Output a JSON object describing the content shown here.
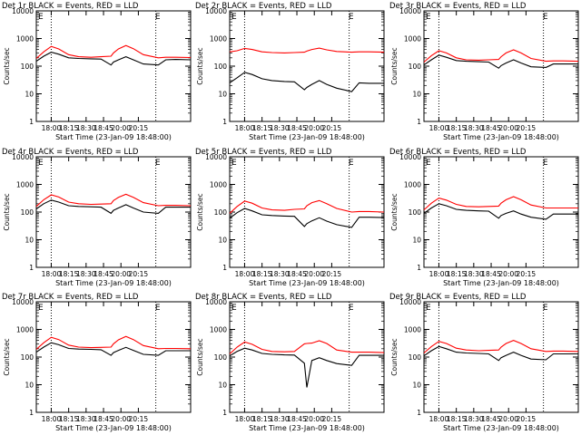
{
  "colors": {
    "events": "#000000",
    "lld": "#ff0000",
    "marker": "#000000"
  },
  "figure": {
    "ylabel": "Counts/sec",
    "xlabel": "Start Time (23-Jan-09 18:48:00)",
    "xtick_labels": [
      "18:00",
      "18:15",
      "18:30",
      "18:45",
      "20:00",
      "20:15"
    ],
    "ytick_labels": [
      "1",
      "10",
      "100",
      "1000",
      "10000"
    ],
    "ytick_values": [
      1,
      10,
      100,
      1000,
      10000
    ],
    "corner_mark": "E"
  },
  "chart_data": [
    {
      "type": "line",
      "title": "Det 1r BLACK = Events, RED = LLD",
      "x_minutes": [
        0,
        6,
        12,
        18,
        26,
        34,
        44,
        52,
        60,
        62,
        66,
        72,
        78,
        86,
        98,
        104,
        112,
        124
      ],
      "ylim": [
        1,
        10000
      ],
      "log_y": true,
      "vlines_minutes": [
        12,
        96
      ],
      "series": [
        {
          "name": "Events",
          "values": [
            150,
            230,
            320,
            270,
            200,
            190,
            185,
            180,
            110,
            140,
            170,
            220,
            170,
            120,
            110,
            170,
            175,
            170
          ]
        },
        {
          "name": "LLD",
          "values": [
            190,
            330,
            520,
            420,
            260,
            220,
            210,
            220,
            230,
            300,
            420,
            560,
            430,
            260,
            200,
            210,
            210,
            205
          ]
        }
      ]
    },
    {
      "type": "line",
      "title": "Det 2r BLACK = Events, RED = LLD",
      "x_minutes": [
        0,
        6,
        12,
        18,
        26,
        34,
        44,
        52,
        60,
        62,
        66,
        72,
        78,
        86,
        98,
        104,
        112,
        124
      ],
      "ylim": [
        1,
        10000
      ],
      "log_y": true,
      "vlines_minutes": [
        12,
        96
      ],
      "series": [
        {
          "name": "Events",
          "values": [
            25,
            38,
            60,
            50,
            35,
            30,
            28,
            27,
            14,
            17,
            22,
            30,
            22,
            16,
            12,
            25,
            24,
            24
          ]
        },
        {
          "name": "LLD",
          "values": [
            330,
            360,
            440,
            400,
            330,
            310,
            300,
            310,
            320,
            350,
            400,
            450,
            390,
            340,
            320,
            330,
            330,
            320
          ]
        }
      ]
    },
    {
      "type": "line",
      "title": "Det 3r BLACK = Events, RED = LLD",
      "x_minutes": [
        0,
        6,
        12,
        18,
        26,
        34,
        44,
        52,
        60,
        62,
        66,
        72,
        78,
        86,
        98,
        104,
        112,
        124
      ],
      "ylim": [
        1,
        10000
      ],
      "log_y": true,
      "vlines_minutes": [
        12,
        96
      ],
      "series": [
        {
          "name": "Events",
          "values": [
            110,
            170,
            250,
            210,
            160,
            150,
            145,
            140,
            85,
            105,
            130,
            170,
            130,
            95,
            90,
            120,
            120,
            120
          ]
        },
        {
          "name": "LLD",
          "values": [
            140,
            240,
            360,
            300,
            200,
            170,
            165,
            170,
            175,
            220,
            300,
            390,
            300,
            190,
            150,
            155,
            155,
            150
          ]
        }
      ]
    },
    {
      "type": "line",
      "title": "Det 4r BLACK = Events, RED = LLD",
      "x_minutes": [
        0,
        6,
        12,
        18,
        26,
        34,
        44,
        52,
        60,
        62,
        66,
        72,
        78,
        86,
        98,
        104,
        112,
        124
      ],
      "ylim": [
        1,
        10000
      ],
      "log_y": true,
      "vlines_minutes": [
        12,
        96
      ],
      "series": [
        {
          "name": "Events",
          "values": [
            130,
            200,
            270,
            230,
            170,
            160,
            155,
            150,
            90,
            115,
            140,
            185,
            140,
            100,
            90,
            150,
            150,
            150
          ]
        },
        {
          "name": "LLD",
          "values": [
            160,
            280,
            420,
            350,
            230,
            200,
            190,
            195,
            200,
            260,
            340,
            440,
            340,
            220,
            170,
            175,
            175,
            170
          ]
        }
      ]
    },
    {
      "type": "line",
      "title": "Det 5r BLACK = Events, RED = LLD",
      "x_minutes": [
        0,
        6,
        12,
        18,
        26,
        34,
        44,
        52,
        60,
        62,
        66,
        72,
        78,
        86,
        98,
        104,
        112,
        124
      ],
      "ylim": [
        1,
        10000
      ],
      "log_y": true,
      "vlines_minutes": [
        12,
        96
      ],
      "series": [
        {
          "name": "Events",
          "values": [
            60,
            95,
            135,
            110,
            80,
            75,
            72,
            70,
            30,
            38,
            48,
            62,
            47,
            35,
            28,
            65,
            65,
            63
          ]
        },
        {
          "name": "LLD",
          "values": [
            90,
            160,
            250,
            210,
            140,
            120,
            115,
            125,
            130,
            170,
            220,
            260,
            200,
            135,
            100,
            105,
            105,
            100
          ]
        }
      ]
    },
    {
      "type": "line",
      "title": "Det 6r BLACK = Events, RED = LLD",
      "x_minutes": [
        0,
        6,
        12,
        18,
        26,
        34,
        44,
        52,
        60,
        62,
        66,
        72,
        78,
        86,
        98,
        104,
        112,
        124
      ],
      "ylim": [
        1,
        10000
      ],
      "log_y": true,
      "vlines_minutes": [
        12,
        96
      ],
      "series": [
        {
          "name": "Events",
          "values": [
            90,
            140,
            200,
            170,
            125,
            115,
            110,
            108,
            60,
            75,
            90,
            110,
            85,
            65,
            55,
            85,
            85,
            85
          ]
        },
        {
          "name": "LLD",
          "values": [
            120,
            210,
            320,
            270,
            190,
            160,
            155,
            160,
            165,
            210,
            280,
            360,
            280,
            180,
            140,
            140,
            140,
            140
          ]
        }
      ]
    },
    {
      "type": "line",
      "title": "Det 7r BLACK = Events, RED = LLD",
      "x_minutes": [
        0,
        6,
        12,
        18,
        26,
        34,
        44,
        52,
        60,
        62,
        66,
        72,
        78,
        86,
        98,
        104,
        112,
        124
      ],
      "ylim": [
        1,
        10000
      ],
      "log_y": true,
      "vlines_minutes": [
        12,
        96
      ],
      "series": [
        {
          "name": "Events",
          "values": [
            150,
            230,
            330,
            280,
            205,
            195,
            190,
            185,
            115,
            145,
            175,
            225,
            175,
            125,
            115,
            170,
            170,
            170
          ]
        },
        {
          "name": "LLD",
          "values": [
            190,
            330,
            520,
            430,
            270,
            230,
            220,
            225,
            230,
            300,
            420,
            560,
            430,
            260,
            200,
            205,
            205,
            200
          ]
        }
      ]
    },
    {
      "type": "line",
      "title": "Det 8r BLACK = Events, RED = LLD",
      "x_minutes": [
        0,
        6,
        12,
        18,
        26,
        34,
        44,
        52,
        60,
        62,
        66,
        72,
        78,
        86,
        98,
        104,
        112,
        124
      ],
      "ylim": [
        1,
        10000
      ],
      "log_y": true,
      "vlines_minutes": [
        12,
        96
      ],
      "series": [
        {
          "name": "Events",
          "values": [
            110,
            160,
            210,
            180,
            135,
            125,
            120,
            118,
            60,
            8,
            75,
            95,
            75,
            58,
            50,
            115,
            115,
            115
          ]
        },
        {
          "name": "LLD",
          "values": [
            130,
            230,
            350,
            290,
            190,
            160,
            155,
            160,
            300,
            310,
            320,
            390,
            310,
            180,
            150,
            150,
            150,
            145
          ]
        }
      ]
    },
    {
      "type": "line",
      "title": "Det 9r BLACK = Events, RED = LLD",
      "x_minutes": [
        0,
        6,
        12,
        18,
        26,
        34,
        44,
        52,
        60,
        62,
        66,
        72,
        78,
        86,
        98,
        104,
        112,
        124
      ],
      "ylim": [
        1,
        10000
      ],
      "log_y": true,
      "vlines_minutes": [
        12,
        96
      ],
      "series": [
        {
          "name": "Events",
          "values": [
            110,
            170,
            240,
            200,
            150,
            140,
            135,
            130,
            75,
            95,
            115,
            150,
            115,
            85,
            80,
            130,
            130,
            130
          ]
        },
        {
          "name": "LLD",
          "values": [
            140,
            240,
            370,
            310,
            210,
            180,
            170,
            175,
            180,
            230,
            310,
            400,
            310,
            200,
            160,
            165,
            165,
            160
          ]
        }
      ]
    }
  ]
}
